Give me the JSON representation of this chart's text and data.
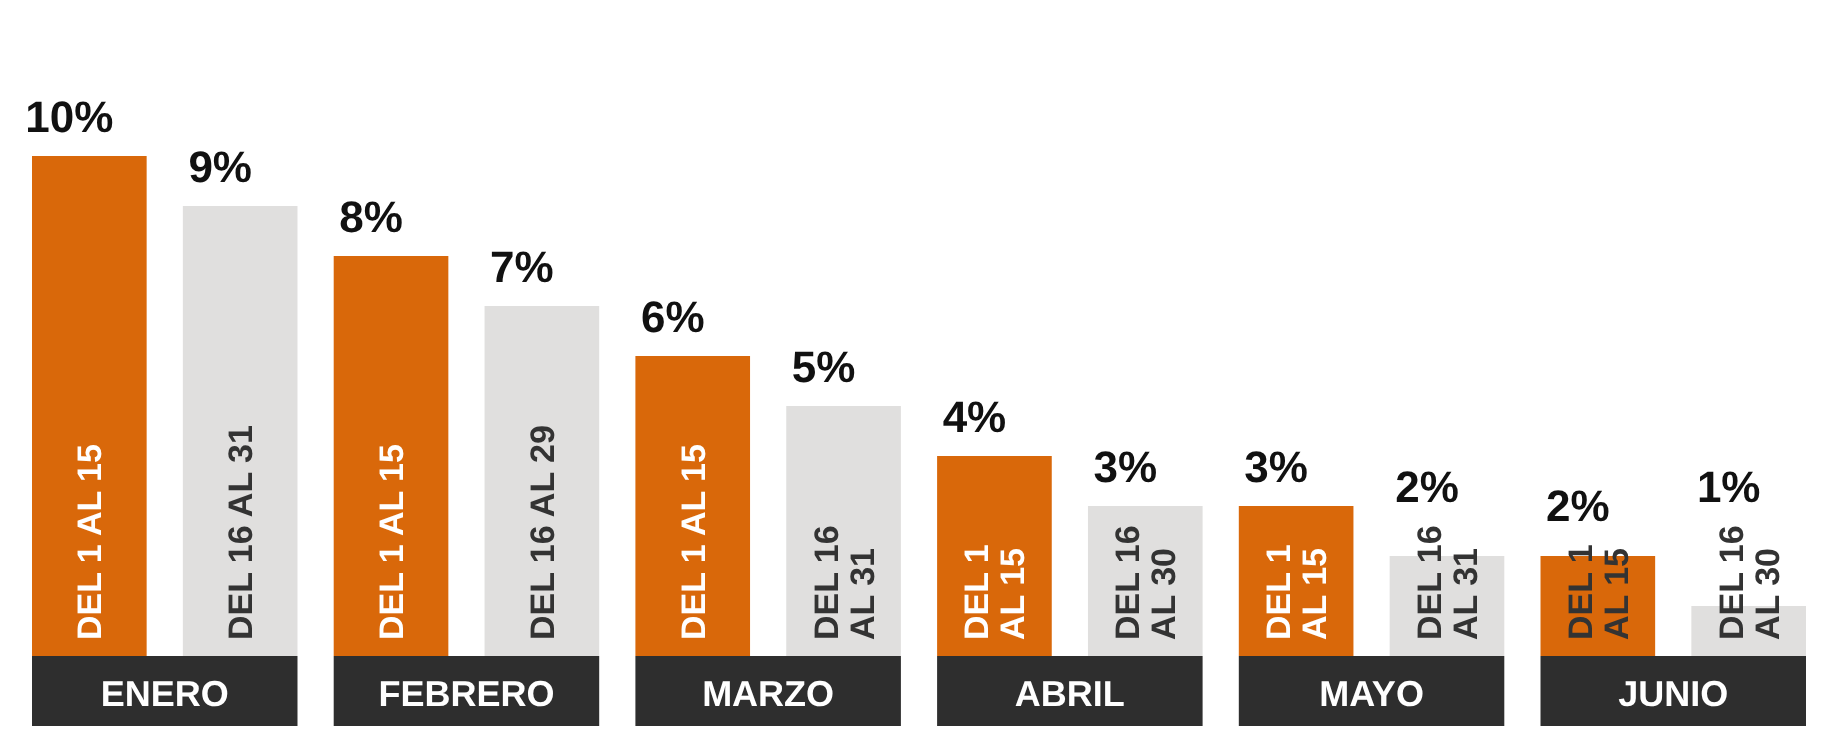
{
  "chart_data": {
    "type": "bar",
    "categories": [
      "DEL 1 AL 15",
      "DEL 16 AL 31",
      "DEL 1 AL 15",
      "DEL 16 AL 29",
      "DEL 1 AL 15",
      "DEL 16 AL 31",
      "DEL 1 AL 15",
      "DEL 16 AL 30",
      "DEL 1 AL 15",
      "DEL 16 AL 31",
      "DEL 1 AL 15",
      "DEL 16 AL 30"
    ],
    "values": [
      10,
      9,
      8,
      7,
      6,
      5,
      4,
      3,
      3,
      2,
      2,
      1
    ],
    "value_labels": [
      "10%",
      "9%",
      "8%",
      "7%",
      "6%",
      "5%",
      "4%",
      "3%",
      "3%",
      "2%",
      "2%",
      "1%"
    ],
    "colors": [
      "#d9680a",
      "#e0dfde",
      "#d9680a",
      "#e0dfde",
      "#d9680a",
      "#e0dfde",
      "#d9680a",
      "#e0dfde",
      "#d9680a",
      "#e0dfde",
      "#d9680a",
      "#e0dfde"
    ],
    "annotations": [
      "ENERO",
      "FEBRERO",
      "MARZO",
      "ABRIL",
      "MAYO",
      "JUNIO"
    ]
  }
}
